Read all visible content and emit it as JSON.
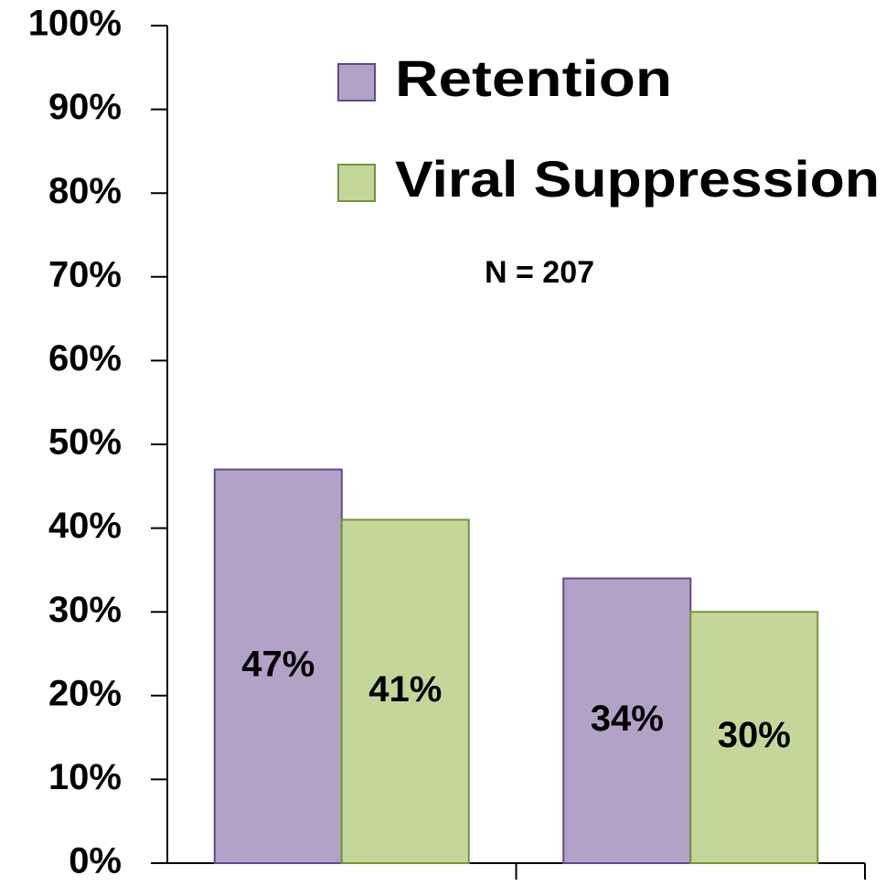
{
  "chart_data": {
    "type": "bar",
    "annotation": "N = 207",
    "categories": [
      null,
      null
    ],
    "series": [
      {
        "name": "Retention",
        "color": "#b3a2c7",
        "edge": "#5f4b8b",
        "values": [
          47,
          34
        ],
        "value_labels": [
          "47%",
          "34%"
        ]
      },
      {
        "name": "Viral Suppression",
        "color": "#c4d79b",
        "edge": "#77933c",
        "values": [
          41,
          30
        ],
        "value_labels": [
          "41%",
          "30%"
        ]
      }
    ],
    "ylim": [
      0,
      100
    ],
    "yticks": [
      {
        "value": 0,
        "label": "0%"
      },
      {
        "value": 10,
        "label": "10%"
      },
      {
        "value": 20,
        "label": "20%"
      },
      {
        "value": 30,
        "label": "30%"
      },
      {
        "value": 40,
        "label": "40%"
      },
      {
        "value": 50,
        "label": "50%"
      },
      {
        "value": 60,
        "label": "60%"
      },
      {
        "value": 70,
        "label": "70%"
      },
      {
        "value": 80,
        "label": "80%"
      },
      {
        "value": 90,
        "label": "90%"
      },
      {
        "value": 100,
        "label": "100%"
      }
    ],
    "grid": false
  }
}
